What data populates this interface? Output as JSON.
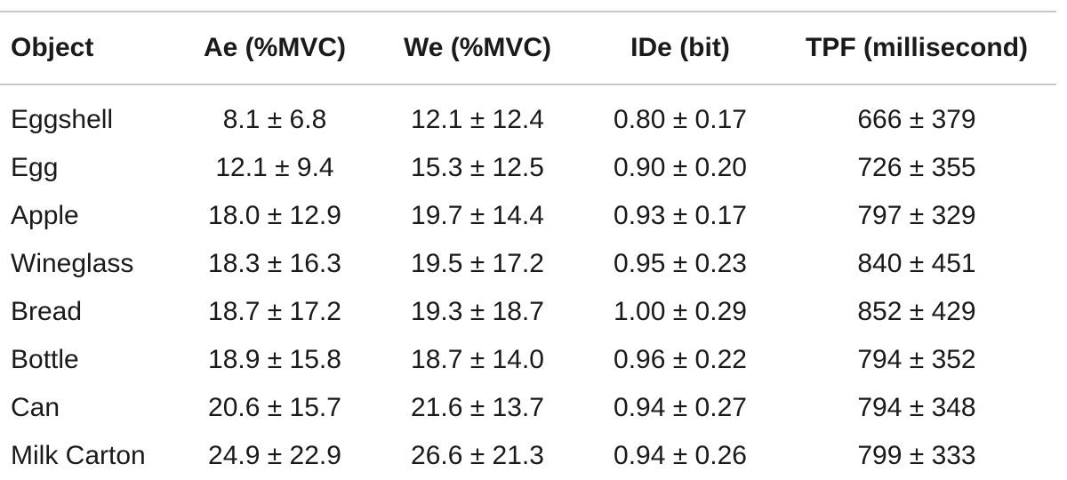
{
  "table": {
    "headers": [
      "Object",
      "Ae (%MVC)",
      "We (%MVC)",
      "IDe (bit)",
      "TPF (millisecond)"
    ],
    "rows": [
      [
        "Eggshell",
        "8.1 ± 6.8",
        "12.1 ± 12.4",
        "0.80 ± 0.17",
        "666 ± 379"
      ],
      [
        "Egg",
        "12.1 ± 9.4",
        "15.3 ± 12.5",
        "0.90 ± 0.20",
        "726 ± 355"
      ],
      [
        "Apple",
        "18.0 ± 12.9",
        "19.7 ± 14.4",
        "0.93 ± 0.17",
        "797 ± 329"
      ],
      [
        "Wineglass",
        "18.3 ± 16.3",
        "19.5 ± 17.2",
        "0.95 ± 0.23",
        "840 ± 451"
      ],
      [
        "Bread",
        "18.7 ± 17.2",
        "19.3 ± 18.7",
        "1.00 ± 0.29",
        "852 ± 429"
      ],
      [
        "Bottle",
        "18.9 ± 15.8",
        "18.7 ± 14.0",
        "0.96 ± 0.22",
        "794 ± 352"
      ],
      [
        "Can",
        "20.6 ± 15.7",
        "21.6 ± 13.7",
        "0.94 ± 0.27",
        "794 ± 348"
      ],
      [
        "Milk Carton",
        "24.9 ± 22.9",
        "26.6 ± 21.3",
        "0.94 ± 0.26",
        "799 ± 333"
      ]
    ]
  },
  "colors": {
    "rule": "#c8c8c8",
    "text": "#1a1a1a",
    "background": "#ffffff"
  }
}
